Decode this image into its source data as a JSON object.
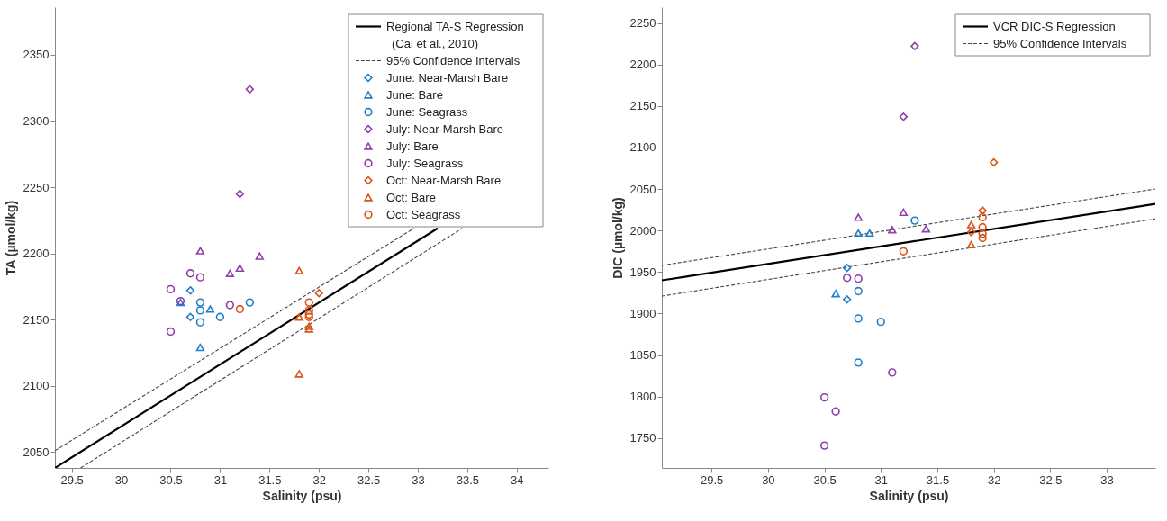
{
  "chart_data": [
    {
      "type": "scatter",
      "xlabel": "Salinity (psu)",
      "ylabel": "TA (µmol/kg)",
      "xlim": [
        29.33,
        34.32
      ],
      "ylim": [
        2038,
        2386
      ],
      "xticks": [
        29.5,
        30,
        30.5,
        31,
        31.5,
        32,
        32.5,
        33,
        33.5,
        34
      ],
      "yticks": [
        2050,
        2100,
        2150,
        2200,
        2250,
        2300,
        2350
      ],
      "grid": false,
      "legend": "top right",
      "series": [
        {
          "name": "Regional TA-S Regression (Cai et al., 2010)",
          "type": "line",
          "line_style": "solid",
          "color": "#000000",
          "x": [
            29.33,
            33.2
          ],
          "values": [
            2038,
            2219
          ]
        },
        {
          "name": "95% Confidence Intervals",
          "type": "line",
          "line_style": "dashed",
          "color": "#444444",
          "x": [
            29.33,
            32.96
          ],
          "values": [
            2051,
            2219
          ]
        },
        {
          "type": "line",
          "line_style": "dashed",
          "color": "#444444",
          "x": [
            29.59,
            33.45
          ],
          "values": [
            2038,
            2219
          ]
        },
        {
          "name": "June: Near-Marsh Bare",
          "marker": "diamond",
          "color": "#1f7fc8",
          "x": [
            30.7,
            30.7
          ],
          "values": [
            2172,
            2152
          ]
        },
        {
          "name": "June: Bare",
          "marker": "triangle",
          "color": "#1f7fc8",
          "x": [
            30.6,
            30.9,
            30.8
          ],
          "values": [
            2163,
            2158,
            2129
          ]
        },
        {
          "name": "June: Seagrass",
          "marker": "circle",
          "color": "#1f7fc8",
          "x": [
            30.8,
            30.8,
            30.8,
            31.0,
            31.3
          ],
          "values": [
            2163,
            2157,
            2148,
            2152,
            2163
          ]
        },
        {
          "name": "July: Near-Marsh Bare",
          "marker": "diamond",
          "color": "#8e3fa8",
          "x": [
            31.3,
            31.2
          ],
          "values": [
            2324,
            2245
          ]
        },
        {
          "name": "July: Bare",
          "marker": "triangle",
          "color": "#8e3fa8",
          "x": [
            30.8,
            31.1,
            31.2,
            31.4
          ],
          "values": [
            2202,
            2185,
            2189,
            2198
          ]
        },
        {
          "name": "July: Seagrass",
          "marker": "circle",
          "color": "#8e3fa8",
          "x": [
            30.5,
            30.6,
            30.7,
            30.8,
            30.5,
            31.1
          ],
          "values": [
            2173,
            2164,
            2185,
            2182,
            2141,
            2161
          ]
        },
        {
          "name": "Oct: Near-Marsh Bare",
          "marker": "diamond",
          "color": "#d95319",
          "x": [
            32.0
          ],
          "values": [
            2170
          ]
        },
        {
          "name": "Oct: Bare",
          "marker": "triangle",
          "color": "#d95319",
          "x": [
            31.8,
            31.8,
            31.9,
            31.8,
            31.9
          ],
          "values": [
            2187,
            2152,
            2143,
            2109,
            2145
          ]
        },
        {
          "name": "Oct: Seagrass",
          "marker": "circle",
          "color": "#d95319",
          "x": [
            31.2,
            31.9,
            31.9,
            31.9,
            31.9
          ],
          "values": [
            2158,
            2163,
            2157,
            2152,
            2154
          ]
        }
      ]
    },
    {
      "type": "scatter",
      "xlabel": "Salinity (psu)",
      "ylabel": "DIC (µmol/kg)",
      "xlim": [
        29.06,
        33.43
      ],
      "ylim": [
        1714,
        2269
      ],
      "xticks": [
        29.5,
        30,
        30.5,
        31,
        31.5,
        32,
        32.5,
        33
      ],
      "yticks": [
        1750,
        1800,
        1850,
        1900,
        1950,
        2000,
        2050,
        2100,
        2150,
        2200,
        2250
      ],
      "grid": false,
      "legend": "top right",
      "series": [
        {
          "name": "VCR DIC-S Regression",
          "type": "line",
          "line_style": "solid",
          "color": "#000000",
          "x": [
            29.06,
            33.43
          ],
          "values": [
            1940,
            2032
          ]
        },
        {
          "name": "95% Confidence Intervals",
          "type": "line",
          "line_style": "dashed",
          "color": "#444444",
          "x": [
            29.06,
            33.43
          ],
          "values": [
            1958,
            2050
          ]
        },
        {
          "type": "line",
          "line_style": "dashed",
          "color": "#444444",
          "x": [
            29.06,
            33.43
          ],
          "values": [
            1921,
            2014
          ]
        },
        {
          "marker": "diamond",
          "color": "#1f7fc8",
          "x": [
            30.7,
            30.7
          ],
          "values": [
            1955,
            1917
          ]
        },
        {
          "marker": "triangle",
          "color": "#1f7fc8",
          "x": [
            30.6,
            30.8,
            30.9
          ],
          "values": [
            1924,
            1997,
            1997
          ]
        },
        {
          "marker": "circle",
          "color": "#1f7fc8",
          "x": [
            30.8,
            30.8,
            31.0,
            30.8,
            31.3
          ],
          "values": [
            1927,
            1894,
            1890,
            1841,
            2012
          ]
        },
        {
          "marker": "diamond",
          "color": "#8e3fa8",
          "x": [
            31.3,
            31.2
          ],
          "values": [
            2222,
            2137
          ]
        },
        {
          "marker": "triangle",
          "color": "#8e3fa8",
          "x": [
            30.8,
            31.2,
            31.1,
            31.4
          ],
          "values": [
            2016,
            2022,
            2001,
            2002
          ]
        },
        {
          "marker": "circle",
          "color": "#8e3fa8",
          "x": [
            30.7,
            30.8,
            31.1,
            30.5,
            30.6,
            30.5
          ],
          "values": [
            1943,
            1942,
            1829,
            1799,
            1782,
            1741
          ]
        },
        {
          "marker": "diamond",
          "color": "#d95319",
          "x": [
            32.0,
            31.9,
            31.8
          ],
          "values": [
            2082,
            2024,
            1998
          ]
        },
        {
          "marker": "triangle",
          "color": "#d95319",
          "x": [
            31.8,
            31.8
          ],
          "values": [
            2007,
            1983
          ]
        },
        {
          "marker": "circle",
          "color": "#d95319",
          "x": [
            31.2,
            31.9,
            31.9,
            31.9,
            31.9
          ],
          "values": [
            1975,
            2016,
            2004,
            1996,
            1991
          ]
        }
      ]
    }
  ]
}
